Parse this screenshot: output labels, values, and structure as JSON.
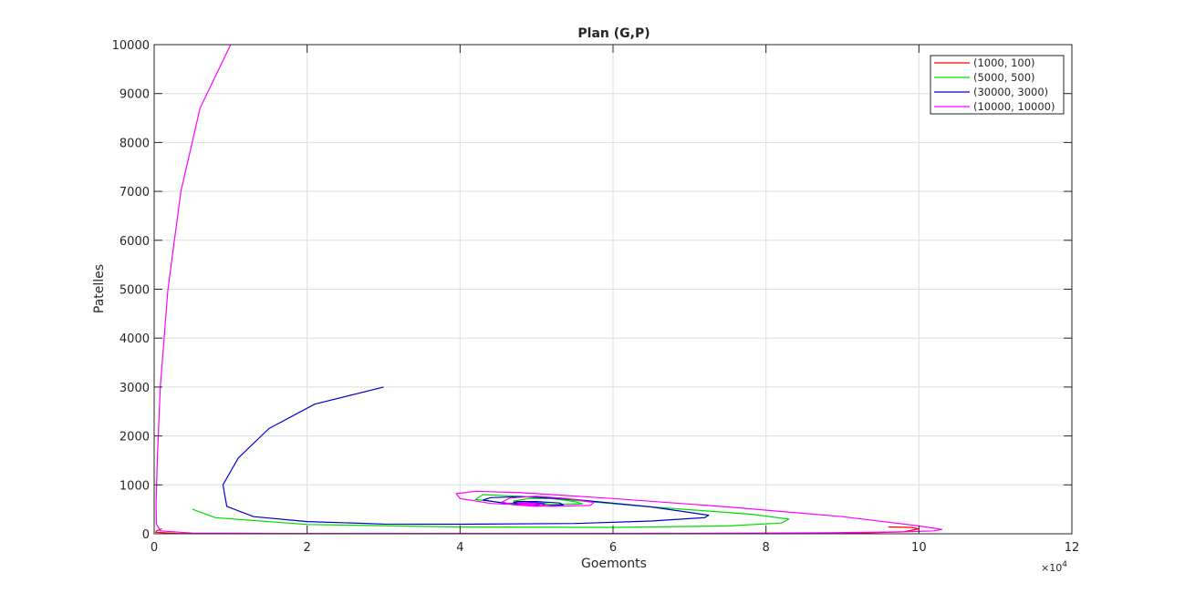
{
  "chart_data": {
    "type": "line",
    "title": "Plan (G,P)",
    "xlabel": "Goemonts",
    "ylabel": "Patelles",
    "x_multiplier": {
      "base": "×10",
      "exponent": "4"
    },
    "xlim": [
      0,
      120000
    ],
    "ylim": [
      0,
      10000
    ],
    "xticks": [
      0,
      20000,
      40000,
      60000,
      80000,
      100000,
      120000
    ],
    "xtick_labels": [
      "0",
      "2",
      "4",
      "6",
      "8",
      "10",
      "12"
    ],
    "yticks": [
      0,
      1000,
      2000,
      3000,
      4000,
      5000,
      6000,
      7000,
      8000,
      9000,
      10000
    ],
    "ytick_labels": [
      "0",
      "1000",
      "2000",
      "3000",
      "4000",
      "5000",
      "6000",
      "7000",
      "8000",
      "9000",
      "10000"
    ],
    "grid": true,
    "legend_position": "top-right",
    "series": [
      {
        "name": "(1000, 100)",
        "color": "#ff0000",
        "x": [
          1000,
          300,
          200,
          3000,
          15000,
          40000,
          70000,
          90000,
          98000,
          100000,
          99000,
          96000
        ],
        "y": [
          100,
          60,
          30,
          8,
          3,
          2,
          2,
          5,
          40,
          100,
          130,
          140
        ]
      },
      {
        "name": "(5000, 500)",
        "color": "#00dd00",
        "x": [
          5000,
          8000,
          20000,
          40000,
          60000,
          75000,
          82000,
          83000,
          78000,
          65000,
          50000,
          43000,
          42000,
          46000,
          52000,
          56000,
          55000,
          52000,
          49000,
          47000,
          47500,
          50000,
          51500,
          50000,
          48000,
          47000,
          47500
        ],
        "y": [
          500,
          330,
          190,
          140,
          130,
          160,
          220,
          300,
          400,
          550,
          750,
          800,
          700,
          630,
          600,
          610,
          660,
          720,
          720,
          670,
          630,
          600,
          610,
          640,
          650,
          640,
          620
        ]
      },
      {
        "name": "(30000, 3000)",
        "color": "#0000cc",
        "x": [
          30000,
          21000,
          15000,
          11000,
          9000,
          9500,
          13000,
          20000,
          30000,
          40000,
          55000,
          65000,
          72000,
          72500,
          65000,
          55000,
          48000,
          44000,
          43000,
          46000,
          51000,
          53500,
          53000,
          50000,
          47500,
          47000,
          48000,
          50000,
          51000,
          50000,
          48500,
          48000
        ],
        "y": [
          3000,
          2650,
          2150,
          1550,
          1000,
          560,
          350,
          250,
          200,
          195,
          210,
          260,
          330,
          380,
          550,
          700,
          760,
          740,
          690,
          620,
          570,
          590,
          630,
          660,
          660,
          640,
          610,
          600,
          610,
          630,
          640,
          630
        ]
      },
      {
        "name": "(10000, 10000)",
        "color": "#ff00ff",
        "x": [
          10000,
          6000,
          3500,
          1800,
          800,
          400,
          250,
          300,
          800,
          5000,
          20000,
          45000,
          70000,
          88000,
          98000,
          102000,
          103000,
          100000,
          90000,
          75000,
          60000,
          48000,
          42000,
          39500,
          40000,
          44000,
          52000,
          57000,
          57500,
          54000,
          50000,
          46500,
          45500,
          47000,
          50000,
          51500,
          50500,
          48500,
          47500,
          48000,
          49500,
          50000,
          49000
        ],
        "y": [
          10000,
          8700,
          7000,
          5000,
          3000,
          1500,
          600,
          200,
          60,
          15,
          5,
          5,
          10,
          20,
          40,
          60,
          90,
          160,
          350,
          550,
          720,
          840,
          870,
          820,
          720,
          620,
          560,
          580,
          640,
          720,
          770,
          730,
          650,
          590,
          560,
          570,
          610,
          640,
          630,
          610,
          600,
          610,
          620
        ]
      }
    ]
  }
}
